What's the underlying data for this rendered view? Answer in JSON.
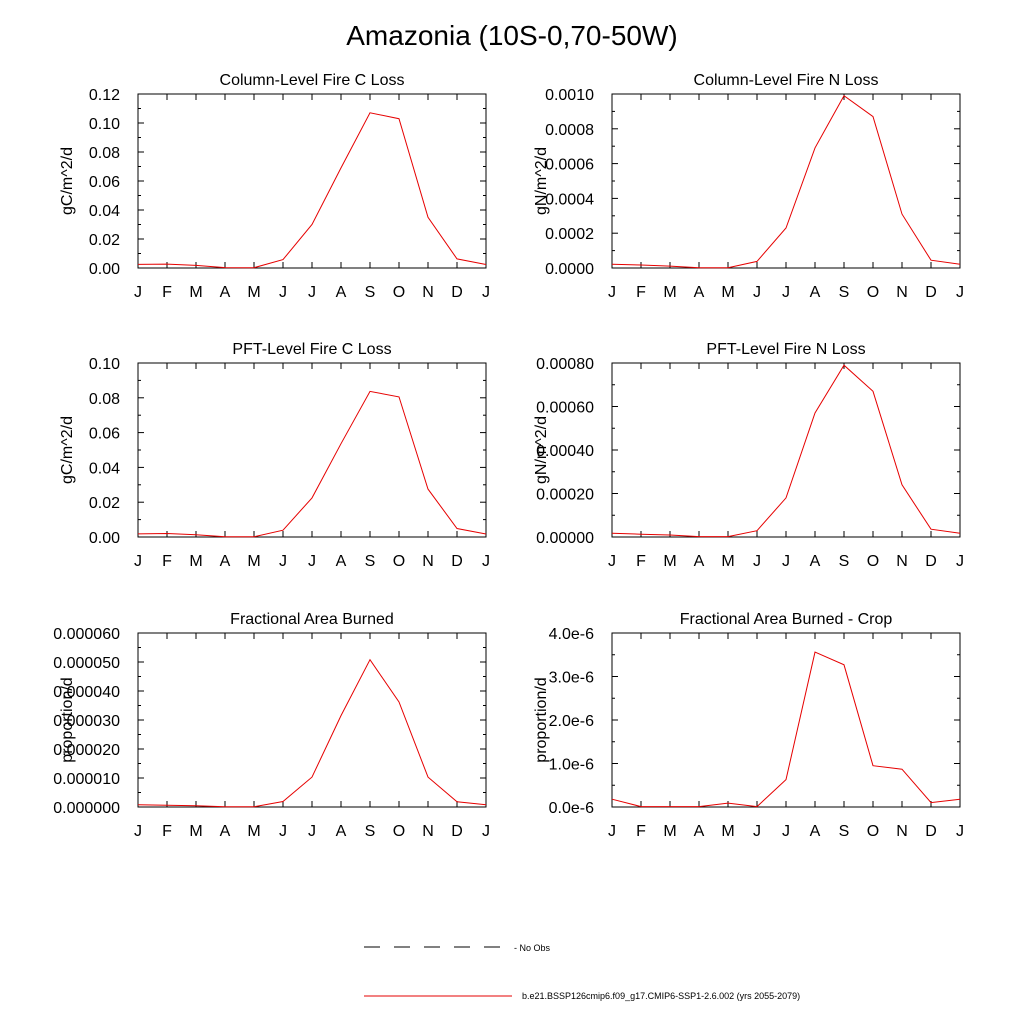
{
  "title": "Amazonia (10S-0,70-50W)",
  "colors": {
    "series": "#e60000",
    "axis": "#000000",
    "background": "#ffffff"
  },
  "chart_data": [
    {
      "type": "line",
      "title": "Column-Level Fire C Loss",
      "ylabel": "gC/m^2/d",
      "xlabel": "",
      "categories": [
        "J",
        "F",
        "M",
        "A",
        "M",
        "J",
        "J",
        "A",
        "S",
        "O",
        "N",
        "D",
        "J"
      ],
      "ylim": [
        0,
        0.12
      ],
      "yticks": [
        "0.00",
        "0.02",
        "0.04",
        "0.06",
        "0.08",
        "0.10",
        "0.12"
      ],
      "series": [
        {
          "values": [
            0.0025,
            0.0027,
            0.0018,
            0.0003,
            0.0002,
            0.0058,
            0.03,
            0.069,
            0.107,
            0.103,
            0.035,
            0.0063,
            0.0024
          ]
        }
      ]
    },
    {
      "type": "line",
      "title": "Column-Level Fire N Loss",
      "ylabel": "gN/m^2/d",
      "xlabel": "",
      "categories": [
        "J",
        "F",
        "M",
        "A",
        "M",
        "J",
        "J",
        "A",
        "S",
        "O",
        "N",
        "D",
        "J"
      ],
      "ylim": [
        0,
        0.001
      ],
      "yticks": [
        "0.0000",
        "0.0002",
        "0.0004",
        "0.0006",
        "0.0008",
        "0.0010"
      ],
      "series": [
        {
          "values": [
            2.2e-05,
            1.7e-05,
            1.1e-05,
            2e-06,
            2e-06,
            3.8e-05,
            0.00023,
            0.00069,
            0.00099,
            0.00087,
            0.00031,
            4.5e-05,
            2.1e-05
          ]
        }
      ]
    },
    {
      "type": "line",
      "title": "PFT-Level Fire C Loss",
      "ylabel": "gC/m^2/d",
      "xlabel": "",
      "categories": [
        "J",
        "F",
        "M",
        "A",
        "M",
        "J",
        "J",
        "A",
        "S",
        "O",
        "N",
        "D",
        "J"
      ],
      "ylim": [
        0,
        0.1
      ],
      "yticks": [
        "0.00",
        "0.02",
        "0.04",
        "0.06",
        "0.08",
        "0.10"
      ],
      "series": [
        {
          "values": [
            0.0018,
            0.002,
            0.0013,
            0.0002,
            0.0001,
            0.0039,
            0.0225,
            0.0536,
            0.0837,
            0.0805,
            0.0275,
            0.0049,
            0.0017
          ]
        }
      ]
    },
    {
      "type": "line",
      "title": "PFT-Level Fire N Loss",
      "ylabel": "gN/m^2/d",
      "xlabel": "",
      "categories": [
        "J",
        "F",
        "M",
        "A",
        "M",
        "J",
        "J",
        "A",
        "S",
        "O",
        "N",
        "D",
        "J"
      ],
      "ylim": [
        0,
        0.0008
      ],
      "yticks": [
        "0.00000",
        "0.00020",
        "0.00040",
        "0.00060",
        "0.00080"
      ],
      "series": [
        {
          "values": [
            1.7e-05,
            1.3e-05,
            9e-06,
            2e-06,
            2e-06,
            2.9e-05,
            0.00018,
            0.00057,
            0.00079,
            0.00067,
            0.00024,
            3.6e-05,
            1.7e-05
          ]
        }
      ]
    },
    {
      "type": "line",
      "title": "Fractional Area Burned",
      "ylabel": "proportion/d",
      "xlabel": "",
      "categories": [
        "J",
        "F",
        "M",
        "A",
        "M",
        "J",
        "J",
        "A",
        "S",
        "O",
        "N",
        "D",
        "J"
      ],
      "ylim": [
        0,
        6e-05
      ],
      "yticks": [
        "0.000000",
        "0.000010",
        "0.000020",
        "0.000030",
        "0.000040",
        "0.000050",
        "0.000060"
      ],
      "series": [
        {
          "values": [
            8e-07,
            6e-07,
            4e-07,
            1e-07,
            1e-07,
            1.9e-06,
            1.03e-05,
            3.15e-05,
            5.08e-05,
            3.62e-05,
            1.03e-05,
            1.8e-06,
            8e-07
          ]
        }
      ]
    },
    {
      "type": "line",
      "title": "Fractional Area Burned - Crop",
      "ylabel": "proportion/d",
      "xlabel": "",
      "categories": [
        "J",
        "F",
        "M",
        "A",
        "M",
        "J",
        "J",
        "A",
        "S",
        "O",
        "N",
        "D",
        "J"
      ],
      "ylim": [
        0,
        4e-06
      ],
      "yticks": [
        "0.0e-6",
        "1.0e-6",
        "2.0e-6",
        "3.0e-6",
        "4.0e-6"
      ],
      "series": [
        {
          "values": [
            1.8e-07,
            1e-08,
            1e-08,
            1e-08,
            9e-08,
            1e-08,
            6.3e-07,
            3.56e-06,
            3.27e-06,
            9.5e-07,
            8.7e-07,
            1e-07,
            1.8e-07
          ]
        }
      ]
    }
  ],
  "legend": [
    {
      "label": "- No Obs",
      "style": "dashed",
      "color": "#000000"
    },
    {
      "label": "b.e21.BSSP126cmip6.f09_g17.CMIP6-SSP1-2.6.002 (yrs 2055-2079)",
      "style": "solid",
      "color": "#e60000"
    }
  ]
}
